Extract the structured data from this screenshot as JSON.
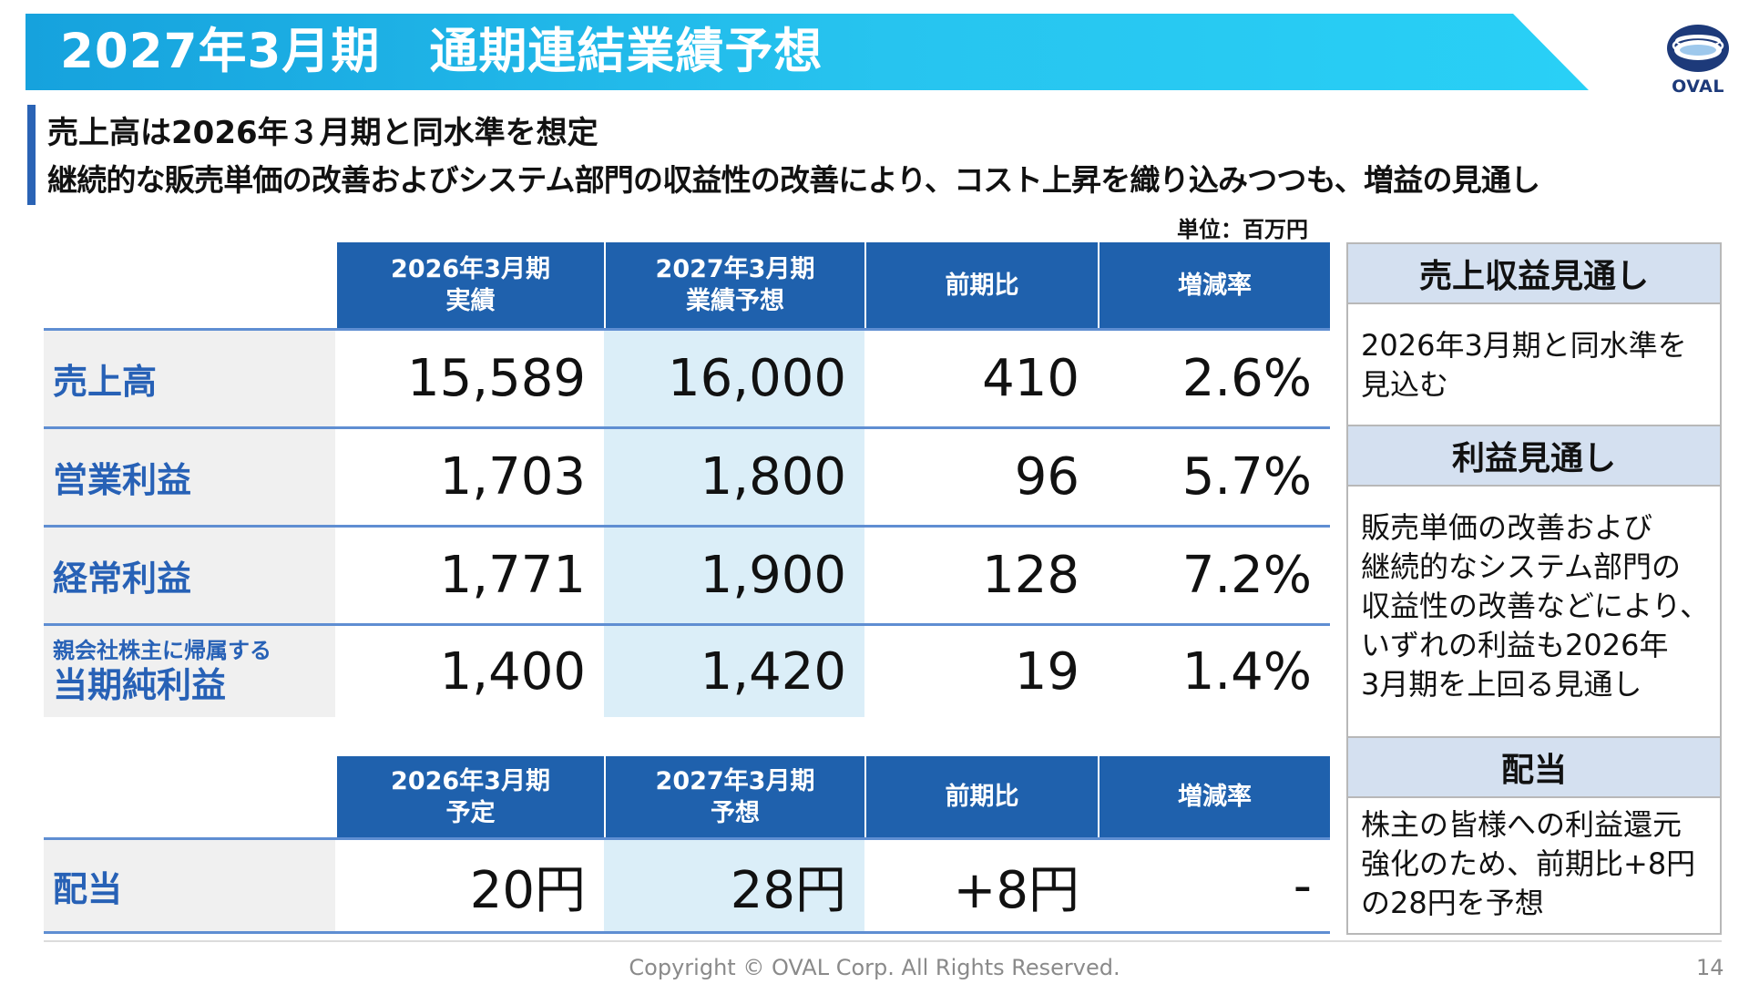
{
  "title": "2027年3月期　通期連結業績予想",
  "logo": {
    "text": "OVAL"
  },
  "summary": {
    "line1": "売上高は2026年３月期と同水準を想定",
    "line2": "継続的な販売単価の改善およびシステム部門の収益性の改善により、コスト上昇を織り込みつつも、増益の見通し"
  },
  "unit": "単位：百万円",
  "results_table": {
    "headers": [
      {
        "line1": "2026年3月期",
        "line2": "実績"
      },
      {
        "line1": "2027年3月期",
        "line2": "業績予想"
      },
      {
        "line1": "前期比",
        "line2": ""
      },
      {
        "line1": "増減率",
        "line2": ""
      }
    ],
    "rows": [
      {
        "label": "売上高",
        "actual": "15,589",
        "forecast": "16,000",
        "change": "410",
        "rate": "2.6%"
      },
      {
        "label": "営業利益",
        "actual": "1,703",
        "forecast": "1,800",
        "change": "96",
        "rate": "5.7%"
      },
      {
        "label": "経常利益",
        "actual": "1,771",
        "forecast": "1,900",
        "change": "128",
        "rate": "7.2%"
      },
      {
        "label_small": "親会社株主に帰属する",
        "label": "当期純利益",
        "actual": "1,400",
        "forecast": "1,420",
        "change": "19",
        "rate": "1.4%"
      }
    ]
  },
  "dividend_table": {
    "headers": [
      {
        "line1": "2026年3月期",
        "line2": "予定"
      },
      {
        "line1": "2027年3月期",
        "line2": "予想"
      },
      {
        "line1": "前期比",
        "line2": ""
      },
      {
        "line1": "増減率",
        "line2": ""
      }
    ],
    "row": {
      "label": "配当",
      "actual": "20円",
      "forecast": "28円",
      "change": "+8円",
      "rate": "-"
    }
  },
  "sidebar": {
    "sections": [
      {
        "title": "売上収益見通し",
        "lines": [
          "2026年3月期と同水準を",
          "見込む"
        ]
      },
      {
        "title": "利益見通し",
        "lines": [
          "販売単価の改善および",
          "継続的なシステム部門の",
          "収益性の改善などにより、",
          "いずれの利益も2026年",
          "3月期を上回る見通し"
        ]
      },
      {
        "title": "配当",
        "lines": [
          "株主の皆様への利益還元",
          "強化のため、前期比+8円",
          "の28円を予想"
        ]
      }
    ]
  },
  "footer": {
    "copyright": "Copyright © OVAL Corp. All Rights Reserved.",
    "page": "14"
  },
  "colors": {
    "banner": "#16a2dd",
    "header_blue": "#1f61ad",
    "label_blue": "#2761b6",
    "highlight": "#dbeef8",
    "sidebar_head": "#d4e0f0"
  }
}
